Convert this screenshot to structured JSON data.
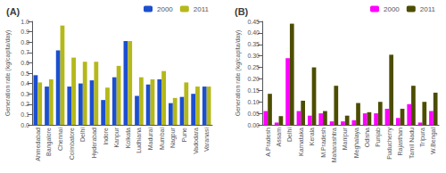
{
  "chart_data": [
    {
      "type": "bar",
      "title": "(A)",
      "categories": [
        "Ahmedabad",
        "Bangalore",
        "Chennai",
        "Coimbatore",
        "Delhi",
        "Hyderabad",
        "Indore",
        "Kanpur",
        "Kolkata",
        "Ludhiana",
        "Madurai",
        "Mumbai",
        "Nagpur",
        "Pune",
        "Vadodara",
        "Varanasi"
      ],
      "series": [
        {
          "name": "2000",
          "color": "#1c4fce",
          "values": [
            0.48,
            0.37,
            0.72,
            0.37,
            0.4,
            0.43,
            0.24,
            0.46,
            0.81,
            0.28,
            0.39,
            0.44,
            0.21,
            0.27,
            0.3,
            0.37
          ]
        },
        {
          "name": "2011",
          "color": "#b5b81a",
          "values": [
            0.41,
            0.44,
            0.96,
            0.65,
            0.61,
            0.61,
            0.36,
            0.57,
            0.81,
            0.46,
            0.44,
            0.52,
            0.26,
            0.41,
            0.37,
            0.37
          ]
        }
      ],
      "ylabel": "Generation rate (kg/capita/day)",
      "ylim": [
        0.0,
        1.0
      ],
      "yticks": [
        {
          "value": 0.0,
          "label": "0.0"
        },
        {
          "value": 0.1,
          "label": "0.1"
        },
        {
          "value": 0.2,
          "label": "0.2"
        },
        {
          "value": 0.3,
          "label": "0.3"
        },
        {
          "value": 0.4,
          "label": "0.4"
        },
        {
          "value": 0.5,
          "label": "0.5"
        },
        {
          "value": 0.6,
          "label": "0.6"
        },
        {
          "value": 0.7,
          "label": "0.7"
        },
        {
          "value": 0.8,
          "label": "0.8"
        },
        {
          "value": 0.9,
          "label": "0.9"
        },
        {
          "value": 1.0,
          "label": "1.0"
        }
      ],
      "grid": false,
      "legend": "upper right"
    },
    {
      "type": "bar",
      "title": "(B)",
      "categories": [
        "A.Pradesh",
        "Assam",
        "Delhi",
        "Karnataka",
        "Kerala",
        "M.Pradesh",
        "Maharashtra",
        "Manipur",
        "Meghalaya",
        "Odisha",
        "Punjab",
        "Puducherry",
        "Rajasthan",
        "Tamil Nadu",
        "Tripura",
        "W.Bengal"
      ],
      "series": [
        {
          "name": "2000",
          "color": "#ff00ff",
          "values": [
            0.06,
            0.01,
            0.29,
            0.06,
            0.04,
            0.05,
            0.015,
            0.015,
            0.02,
            0.05,
            0.05,
            0.07,
            0.03,
            0.09,
            0.01,
            0.06
          ]
        },
        {
          "name": "2011",
          "color": "#4d4d00",
          "values": [
            0.135,
            0.038,
            0.44,
            0.105,
            0.25,
            0.06,
            0.17,
            0.04,
            0.095,
            0.055,
            0.1,
            0.305,
            0.07,
            0.17,
            0.1,
            0.14
          ]
        }
      ],
      "ylabel": "Generation rate (kg/capita/day)",
      "ylim": [
        0.0,
        0.45
      ],
      "yticks": [
        {
          "value": 0.0,
          "label": "0.00"
        },
        {
          "value": 0.05,
          "label": "0.05"
        },
        {
          "value": 0.1,
          "label": "0.10"
        },
        {
          "value": 0.15,
          "label": "0.15"
        },
        {
          "value": 0.2,
          "label": "0.20"
        },
        {
          "value": 0.25,
          "label": "0.25"
        },
        {
          "value": 0.3,
          "label": "0.30"
        },
        {
          "value": 0.35,
          "label": "0.35"
        },
        {
          "value": 0.4,
          "label": "0.40"
        },
        {
          "value": 0.45,
          "label": "0.45"
        }
      ],
      "grid": false,
      "legend": "upper right"
    }
  ]
}
